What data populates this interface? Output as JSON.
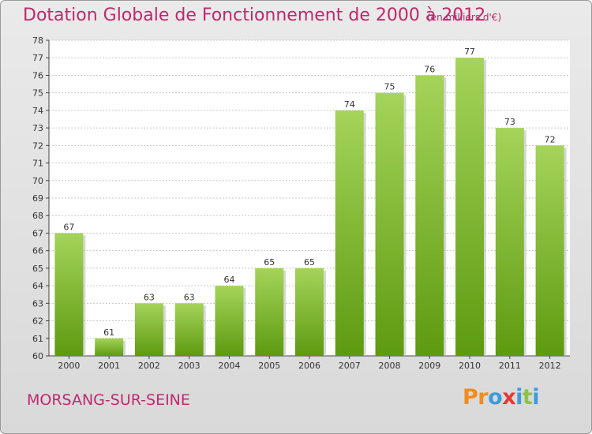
{
  "header": {
    "title": "Dotation Globale de Fonctionnement de 2000 à 2012",
    "subtitle": "(en milliers d'€)"
  },
  "footer": {
    "location": "MORSANG-SUR-SEINE",
    "brand": {
      "letters": [
        "P",
        "r",
        "o",
        "x",
        "i",
        "t",
        "i"
      ],
      "colors": [
        "#f28c1e",
        "#f28c1e",
        "#3b9cdb",
        "#e53935",
        "#3b9cdb",
        "#8bc34a",
        "#3b9cdb"
      ]
    }
  },
  "chart_data": {
    "type": "bar",
    "categories": [
      "2000",
      "2001",
      "2002",
      "2003",
      "2004",
      "2005",
      "2006",
      "2007",
      "2008",
      "2009",
      "2010",
      "2011",
      "2012"
    ],
    "values": [
      67,
      61,
      63,
      63,
      64,
      65,
      65,
      74,
      75,
      76,
      77,
      73,
      72
    ],
    "ylim": [
      60,
      78
    ],
    "yticks": [
      60,
      61,
      62,
      63,
      64,
      65,
      66,
      67,
      68,
      69,
      70,
      71,
      72,
      73,
      74,
      75,
      76,
      77,
      78
    ],
    "grid": true,
    "bar_color_top": "#a4d45a",
    "bar_color_bottom": "#5e9a10"
  }
}
